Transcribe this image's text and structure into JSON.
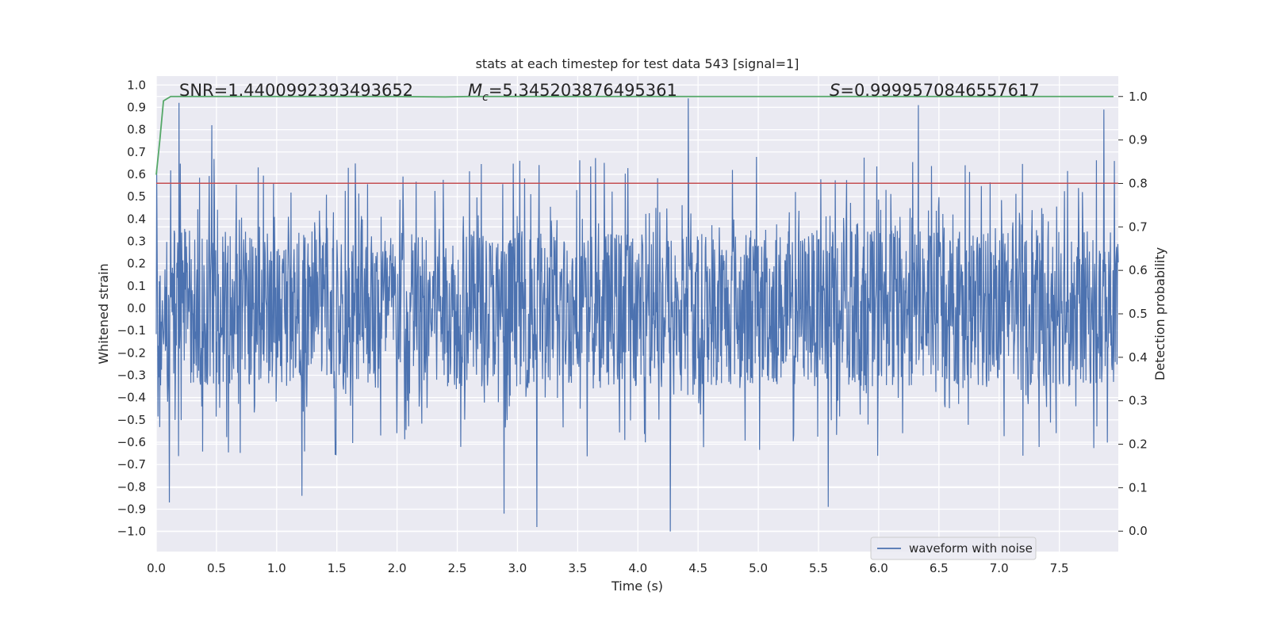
{
  "chart_data": {
    "type": "line",
    "title": "stats at each timestep for test data 543 [signal=1]",
    "xlabel": "Time (s)",
    "ylabel": "Whitened strain",
    "y2label": "Detection probability",
    "xlim": [
      0.0,
      7.99
    ],
    "ylim": [
      -1.09,
      1.04
    ],
    "y2lim": [
      -0.047,
      1.047
    ],
    "xticks": [
      0.0,
      0.5,
      1.0,
      1.5,
      2.0,
      2.5,
      3.0,
      3.5,
      4.0,
      4.5,
      5.0,
      5.5,
      6.0,
      6.5,
      7.0,
      7.5
    ],
    "xtick_labels": [
      "0.0",
      "0.5",
      "1.0",
      "1.5",
      "2.0",
      "2.5",
      "3.0",
      "3.5",
      "4.0",
      "4.5",
      "5.0",
      "5.5",
      "6.0",
      "6.5",
      "7.0",
      "7.5"
    ],
    "yticks": [
      1.0,
      0.9,
      0.8,
      0.7,
      0.6,
      0.5,
      0.4,
      0.3,
      0.2,
      0.1,
      0.0,
      -0.1,
      -0.2,
      -0.3,
      -0.4,
      -0.5,
      -0.6,
      -0.7,
      -0.8,
      -0.9,
      -1.0
    ],
    "ytick_labels": [
      "1.0",
      "0.9",
      "0.8",
      "0.7",
      "0.6",
      "0.5",
      "0.4",
      "0.3",
      "0.2",
      "0.1",
      "0.0",
      "−0.1",
      "−0.2",
      "−0.3",
      "−0.4",
      "−0.5",
      "−0.6",
      "−0.7",
      "−0.8",
      "−0.9",
      "−1.0"
    ],
    "y2ticks": [
      1.0,
      0.9,
      0.8,
      0.7,
      0.6,
      0.5,
      0.4,
      0.3,
      0.2,
      0.1,
      0.0
    ],
    "y2tick_labels": [
      "1.0",
      "0.9",
      "0.8",
      "0.7",
      "0.6",
      "0.5",
      "0.4",
      "0.3",
      "0.2",
      "0.1",
      "0.0"
    ],
    "annotations": {
      "snr": "SNR=1.4400992393493652",
      "mc_symbol": "M",
      "mc_sub": "c",
      "mc_value": "=5.345203876495361",
      "s_symbol": "S",
      "s_value": "=0.9999570846557617"
    },
    "series": [
      {
        "name": "waveform with noise",
        "axis": "left",
        "color": "#4c72b0",
        "style": "dense oscillating noise",
        "typical_range": [
          -0.35,
          0.35
        ],
        "peaks": [
          {
            "x": 0.11,
            "y": -0.87
          },
          {
            "x": 0.19,
            "y": 0.92
          },
          {
            "x": 0.46,
            "y": 0.82
          },
          {
            "x": 1.21,
            "y": -0.84
          },
          {
            "x": 2.89,
            "y": -0.92
          },
          {
            "x": 3.16,
            "y": -0.98
          },
          {
            "x": 4.27,
            "y": -1.0
          },
          {
            "x": 4.42,
            "y": 0.94
          },
          {
            "x": 5.58,
            "y": -0.89
          },
          {
            "x": 6.33,
            "y": 0.91
          },
          {
            "x": 7.87,
            "y": 0.89
          }
        ]
      },
      {
        "name": "threshold",
        "axis": "left",
        "color": "#c44e52",
        "y": 0.56
      },
      {
        "name": "detection probability",
        "axis": "right",
        "color": "#55a868",
        "x": [
          0.0,
          0.03,
          0.06,
          0.12,
          0.4,
          2.0,
          2.4,
          2.6,
          3.0,
          5.0,
          7.95
        ],
        "y": [
          0.82,
          0.9,
          0.99,
          1.0,
          1.0,
          1.0,
          0.999,
          1.0,
          1.0,
          1.0,
          1.0
        ]
      }
    ],
    "legend": {
      "entries": [
        "waveform with noise"
      ],
      "location": "lower-right"
    }
  }
}
